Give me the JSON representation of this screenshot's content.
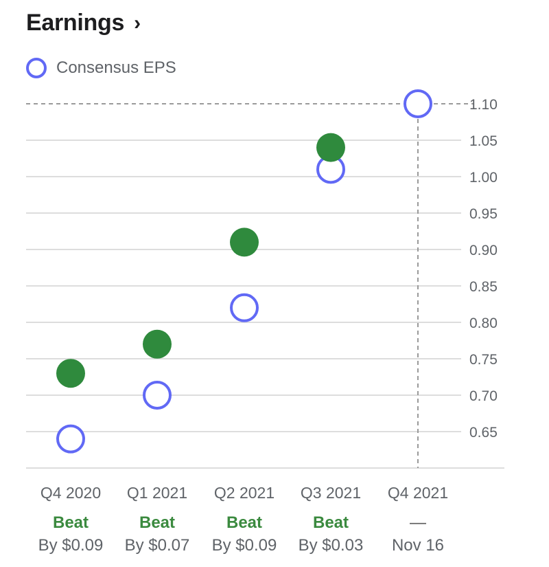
{
  "header": {
    "title": "Earnings",
    "chevron": "›"
  },
  "legend": {
    "label": "Consensus EPS"
  },
  "colors": {
    "actual": "#2f8a3d",
    "estimate": "#6169f5",
    "grid": "#dddddd",
    "text": "#5f6368",
    "beat": "#3b8a3f"
  },
  "chart_data": {
    "type": "scatter",
    "categories": [
      "Q4 2020",
      "Q1 2021",
      "Q2 2021",
      "Q3 2021",
      "Q4 2021"
    ],
    "series": [
      {
        "values": [
          0.73,
          0.77,
          0.91,
          1.04,
          null
        ]
      },
      {
        "name": "Consensus EPS",
        "values": [
          0.64,
          0.7,
          0.82,
          1.01,
          1.1
        ]
      }
    ],
    "yticks": [
      "0.65",
      "0.70",
      "0.75",
      "0.80",
      "0.85",
      "0.90",
      "0.95",
      "1.00",
      "1.05",
      "1.10"
    ],
    "ylim": [
      0.6,
      1.1
    ],
    "results": [
      "Beat",
      "Beat",
      "Beat",
      "Beat",
      "—"
    ],
    "details": [
      "By $0.09",
      "By $0.07",
      "By $0.09",
      "By $0.03",
      "Nov 16"
    ]
  }
}
